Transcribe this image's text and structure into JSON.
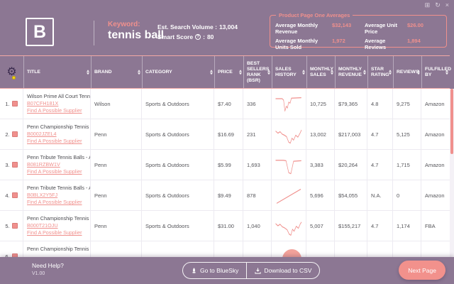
{
  "theme": {
    "background": "#8C7793",
    "accent": "#F0908D",
    "table_text": "#55555A",
    "highlight_yellow": "#F2D417"
  },
  "window_controls": {
    "restore": "⊞",
    "refresh": "↻",
    "close": "×"
  },
  "header": {
    "logo_letter": "B",
    "keyword_label": "Keyword:",
    "keyword_value": "tennis ball",
    "search_volume_label": "Est. Search Volume :",
    "search_volume_value": "13,004",
    "smart_score_label": "Smart Score",
    "question_icon": "?",
    "smart_score_colon": ":",
    "smart_score_value": "80",
    "averages": {
      "box_title": "Product Page One Averages",
      "monthly_revenue_label": "Average Monthly Revenue",
      "monthly_revenue_value": "$32,143",
      "monthly_units_label": "Average Monthly Units Sold",
      "monthly_units_value": "1,972",
      "unit_price_label": "Average Unit Price",
      "unit_price_value": "$26.00",
      "reviews_label": "Average Reviews",
      "reviews_value": "1,894"
    }
  },
  "table": {
    "gear_icon": "⚙",
    "columns": [
      "TITLE",
      "BRAND",
      "CATEGORY",
      "PRICE",
      "BEST SELLERS RANK (BSR)",
      "SALES HISTORY",
      "MONTHLY SALES",
      "MONTHLY REVENUE",
      "STAR RATING",
      "REVIEWS",
      "FULFILLED BY"
    ],
    "rows": [
      {
        "num": "1.",
        "title": "Wilson Prime All Court Tennis..",
        "asin": "B07CFH181X",
        "supplier": "Find A Possible Supplier",
        "brand": "Wilson",
        "category": "Sports & Outdoors",
        "price": "$7.40",
        "bsr": "336",
        "sparkline": [
          [
            2,
            10
          ],
          [
            26,
            10
          ],
          [
            31,
            13
          ],
          [
            36,
            35
          ],
          [
            41,
            25
          ],
          [
            45,
            29
          ],
          [
            50,
            17
          ],
          [
            55,
            19
          ],
          [
            60,
            9
          ],
          [
            96,
            8
          ]
        ],
        "monthly_sales": "10,725",
        "monthly_revenue": "$79,365",
        "star_rating": "4.8",
        "reviews": "9,275",
        "fulfilled_by": "Amazon"
      },
      {
        "num": "2.",
        "title": "Penn Championship Tennis Ba..",
        "asin": "B0002JZEL4",
        "supplier": "Find A Possible Supplier",
        "brand": "Penn",
        "category": "Sports & Outdoors",
        "price": "$16.69",
        "bsr": "231",
        "sparkline": [
          [
            2,
            14
          ],
          [
            10,
            18
          ],
          [
            18,
            15
          ],
          [
            26,
            20
          ],
          [
            34,
            22
          ],
          [
            42,
            25
          ],
          [
            50,
            36
          ],
          [
            56,
            38
          ],
          [
            62,
            28
          ],
          [
            68,
            32
          ],
          [
            76,
            22
          ],
          [
            84,
            26
          ],
          [
            92,
            18
          ],
          [
            97,
            12
          ]
        ],
        "monthly_sales": "13,002",
        "monthly_revenue": "$217,003",
        "star_rating": "4.7",
        "reviews": "5,125",
        "fulfilled_by": "Amazon"
      },
      {
        "num": "3.",
        "title": "Penn Tribute Tennis Balls - All..",
        "asin": "B081RZBW1V",
        "supplier": "Find A Possible Supplier",
        "brand": "Penn",
        "category": "Sports & Outdoors",
        "price": "$5.99",
        "bsr": "1,693",
        "sparkline": [
          [
            2,
            11
          ],
          [
            30,
            11
          ],
          [
            40,
            12
          ],
          [
            50,
            36
          ],
          [
            58,
            38
          ],
          [
            68,
            13
          ],
          [
            96,
            12
          ]
        ],
        "monthly_sales": "3,383",
        "monthly_revenue": "$20,264",
        "star_rating": "4.7",
        "reviews": "1,715",
        "fulfilled_by": "Amazon"
      },
      {
        "num": "4.",
        "title": "Penn Tribute Tennis Balls - All..",
        "asin": "B0BLX2Y5FJ",
        "supplier": "Find A Possible Supplier",
        "brand": "Penn",
        "category": "Sports & Outdoors",
        "price": "$9.49",
        "bsr": "878",
        "sparkline": [
          [
            6,
            36
          ],
          [
            94,
            8
          ]
        ],
        "monthly_sales": "5,696",
        "monthly_revenue": "$54,055",
        "star_rating": "N.A.",
        "reviews": "0",
        "fulfilled_by": "Amazon"
      },
      {
        "num": "5.",
        "title": "Penn Championship Tennis Ba..",
        "asin": "B000T21OJU",
        "supplier": "Find A Possible Supplier",
        "brand": "Penn",
        "category": "Sports & Outdoors",
        "price": "$31.00",
        "bsr": "1,040",
        "sparkline": [
          [
            2,
            16
          ],
          [
            10,
            20
          ],
          [
            18,
            17
          ],
          [
            26,
            22
          ],
          [
            34,
            24
          ],
          [
            44,
            28
          ],
          [
            52,
            37
          ],
          [
            58,
            39
          ],
          [
            64,
            27
          ],
          [
            70,
            31
          ],
          [
            78,
            21
          ],
          [
            86,
            25
          ],
          [
            93,
            16
          ],
          [
            97,
            13
          ]
        ],
        "monthly_sales": "5,007",
        "monthly_revenue": "$155,217",
        "star_rating": "4.7",
        "reviews": "1,174",
        "fulfilled_by": "FBA"
      },
      {
        "num": "6.",
        "title": "Penn Championship Tennis Ba..",
        "asin": "",
        "supplier": "",
        "brand": "",
        "category": "",
        "price": "",
        "bsr": "",
        "sparkline": [],
        "monthly_sales": "",
        "monthly_revenue": "",
        "star_rating": "",
        "reviews": "",
        "fulfilled_by": ""
      }
    ]
  },
  "footer": {
    "need_help": "Need Help?",
    "version": "V1.00",
    "go_bluesky": "Go to BlueSky",
    "download_csv": "Download to CSV",
    "next_page": "Next Page"
  }
}
